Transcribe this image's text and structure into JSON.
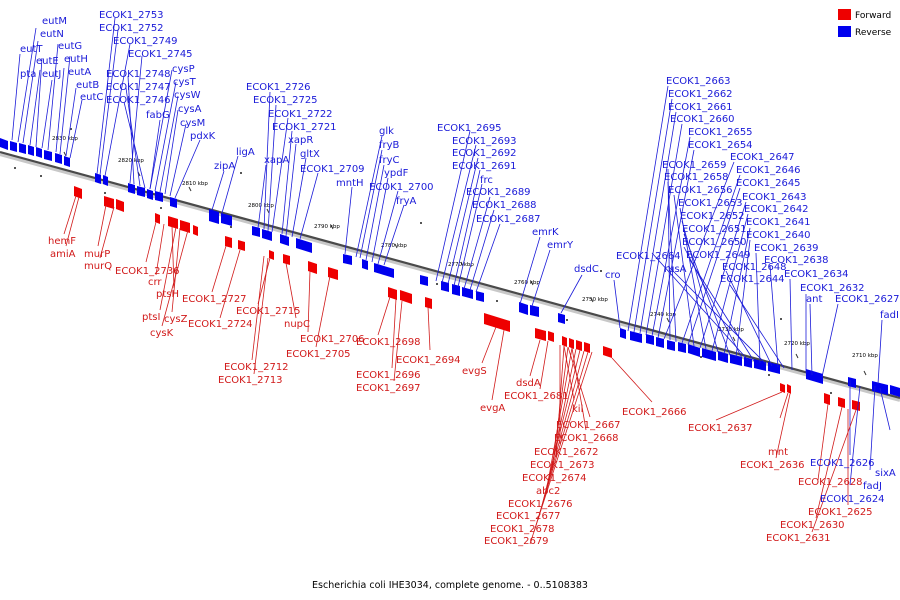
{
  "caption": "Escherichia coli IHE3034, complete genome. - 0..5108383",
  "legend": [
    {
      "label": "Forward",
      "color": "#ee0000"
    },
    {
      "label": "Reverse",
      "color": "#0000ee"
    }
  ],
  "colors": {
    "forward": "#ee0000",
    "reverse": "#0000ee",
    "forward_text": "#d11a1a",
    "reverse_text": "#1a1ad8"
  },
  "ticks": [
    "2830 kbp",
    "2820 kbp",
    "2810 kbp",
    "2800 kbp",
    "2790 kbp",
    "2780 kbp",
    "2770 kbp",
    "2760 kbp",
    "2750 kbp",
    "2740 kbp",
    "2730 kbp",
    "2720 kbp",
    "2710 kbp"
  ],
  "reverse_labels": [
    "eutM",
    "eutN",
    "eutT",
    "eutG",
    "eutE",
    "eutH",
    "pta",
    "eutJ",
    "eutA",
    "eutB",
    "eutC",
    "ECOK1_2753",
    "ECOK1_2752",
    "ECOK1_2749",
    "ECOK1_2745",
    "ECOK1_2748",
    "ECOK1_2747",
    "ECOK1_2746",
    "cysP",
    "cysT",
    "cysW",
    "cysA",
    "cysM",
    "fabG",
    "pdxK",
    "zipA",
    "ligA",
    "xapA",
    "ECOK1_2726",
    "ECOK1_2725",
    "ECOK1_2722",
    "ECOK1_2721",
    "xapR",
    "gltX",
    "ECOK1_2709",
    "mntH",
    "glk",
    "fryB",
    "fryC",
    "ypdF",
    "ECOK1_2700",
    "fryA",
    "ECOK1_2695",
    "ECOK1_2693",
    "ECOK1_2692",
    "ECOK1_2691",
    "frc",
    "ECOK1_2689",
    "ECOK1_2688",
    "ECOK1_2687",
    "emrK",
    "emrY",
    "dsdC",
    "cro",
    "ECOK1_2663",
    "ECOK1_2662",
    "ECOK1_2661",
    "ECOK1_2660",
    "ECOK1_2655",
    "ECOK1_2654",
    "ECOK1_2647",
    "ECOK1_2659",
    "ECOK1_2658",
    "ECOK1_2646",
    "ECOK1_2645",
    "ECOK1_2656",
    "ECOK1_2643",
    "ECOK1_2653",
    "ECOK1_2642",
    "ECOK1_2652",
    "ECOK1_2641",
    "ECOK1_2651",
    "ECOK1_2640",
    "ECOK1_2650",
    "ECOK1_2664",
    "ECOK1_2649",
    "ECOK1_2639",
    "rusA",
    "ECOK1_2648",
    "ECOK1_2638",
    "ECOK1_2644",
    "ECOK1_2634",
    "ECOK1_2632",
    "ant",
    "ECOK1_2627",
    "fadI",
    "ECOK1_2626",
    "sixA",
    "fadJ",
    "ECOK1_2624"
  ],
  "forward_labels": [
    "hemF",
    "amiA",
    "murP",
    "murQ",
    "ECOK1_2736",
    "crr",
    "ptsH",
    "ptsI",
    "cysZ",
    "cysK",
    "ECOK1_2727",
    "ECOK1_2724",
    "ECOK1_2715",
    "nupC",
    "ECOK1_2706",
    "ECOK1_2705",
    "ECOK1_2712",
    "ECOK1_2713",
    "ECOK1_2698",
    "ECOK1_2696",
    "ECOK1_2697",
    "ECOK1_2694",
    "evgS",
    "evgA",
    "dsdA",
    "ECOK1_2681",
    "kil",
    "ECOK1_2667",
    "ECOK1_2668",
    "ECOK1_2672",
    "ECOK1_2673",
    "ECOK1_2674",
    "abc2",
    "ECOK1_2676",
    "ECOK1_2677",
    "ECOK1_2678",
    "ECOK1_2679",
    "ECOK1_2666",
    "ECOK1_2637",
    "mnt",
    "ECOK1_2636",
    "ECOK1_2628",
    "ECOK1_2630",
    "ECOK1_2625",
    "ECOK1_2631"
  ]
}
